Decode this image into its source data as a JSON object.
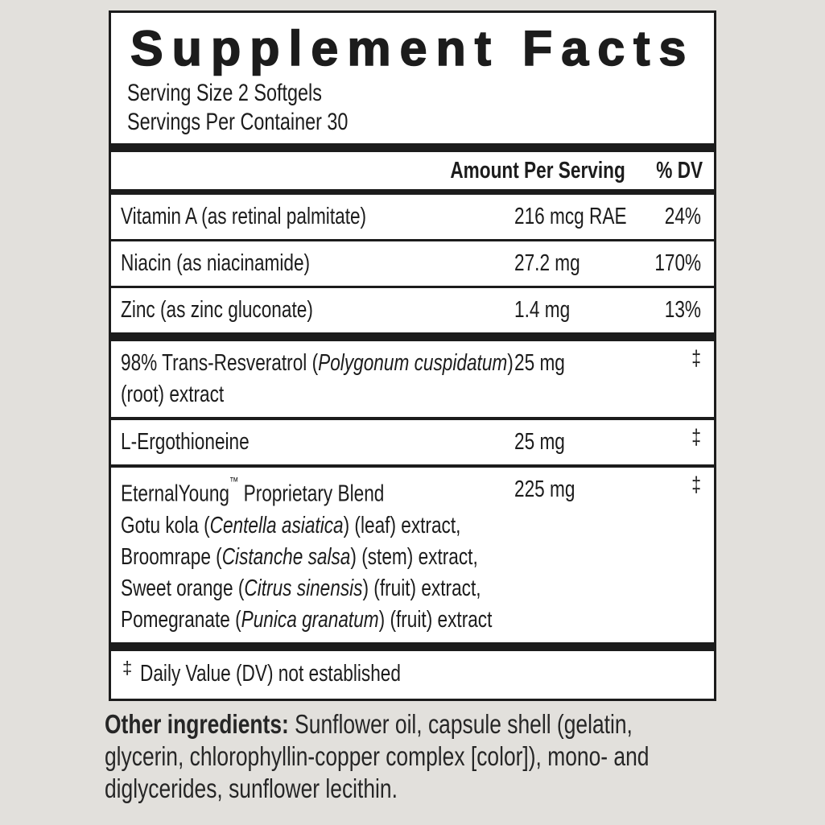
{
  "page": {
    "background_color": "#e2e0dc",
    "panel_background": "#ffffff",
    "rule_color": "#1c1c1c",
    "text_color": "#1c1c1c"
  },
  "title": "Supplement Facts",
  "serving": {
    "size": "Serving Size 2 Softgels",
    "per_container": "Servings Per Container 30"
  },
  "columns": {
    "amount": "Amount Per Serving",
    "dv": "% DV"
  },
  "rows": [
    {
      "name_lines": [
        [
          {
            "t": "Vitamin A (as retinal palmitate)"
          }
        ]
      ],
      "amount": "216 mcg RAE",
      "dv": "24%",
      "dv_is_dagger": false,
      "sep_after": "thin"
    },
    {
      "name_lines": [
        [
          {
            "t": "Niacin (as niacinamide)"
          }
        ]
      ],
      "amount": "27.2 mg",
      "dv": "170%",
      "dv_is_dagger": false,
      "sep_after": "thin"
    },
    {
      "name_lines": [
        [
          {
            "t": "Zinc (as zinc gluconate)"
          }
        ]
      ],
      "amount": "1.4 mg",
      "dv": "13%",
      "dv_is_dagger": false,
      "sep_after": "thick"
    },
    {
      "name_lines": [
        [
          {
            "t": "98% Trans-Resveratrol ("
          },
          {
            "t": "Polygonum cuspidatum",
            "i": true
          },
          {
            "t": ")"
          }
        ],
        [
          {
            "t": "(root) extract"
          }
        ]
      ],
      "amount": "25 mg",
      "dv": "‡",
      "dv_is_dagger": true,
      "sep_after": "mid"
    },
    {
      "name_lines": [
        [
          {
            "t": "L-Ergothioneine"
          }
        ]
      ],
      "amount": "25 mg",
      "dv": "‡",
      "dv_is_dagger": true,
      "sep_after": "mid"
    },
    {
      "name_lines": [
        [
          {
            "t": "EternalYoung"
          },
          {
            "t": "™",
            "sup": true
          },
          {
            "t": " Proprietary Blend"
          }
        ],
        [
          {
            "t": "Gotu kola ("
          },
          {
            "t": "Centella asiatica",
            "i": true
          },
          {
            "t": ") (leaf) extract,"
          }
        ],
        [
          {
            "t": "Broomrape ("
          },
          {
            "t": "Cistanche salsa",
            "i": true
          },
          {
            "t": ") (stem) extract,"
          }
        ],
        [
          {
            "t": "Sweet orange ("
          },
          {
            "t": "Citrus sinensis",
            "i": true
          },
          {
            "t": ") (fruit) extract,"
          }
        ],
        [
          {
            "t": "Pomegranate ("
          },
          {
            "t": "Punica granatum",
            "i": true
          },
          {
            "t": ") (fruit) extract"
          }
        ]
      ],
      "amount": "225 mg",
      "dv": "‡",
      "dv_is_dagger": true,
      "sep_after": "thick"
    }
  ],
  "footnote": {
    "symbol": "‡",
    "text": "Daily Value (DV) not established"
  },
  "other_ingredients": {
    "label": "Other ingredients:",
    "line1_rest": " Sunflower oil, capsule shell (gelatin,",
    "line2": "glycerin, chlorophyllin-copper complex [color]), mono- and",
    "line3": "diglycerides, sunflower lecithin."
  }
}
